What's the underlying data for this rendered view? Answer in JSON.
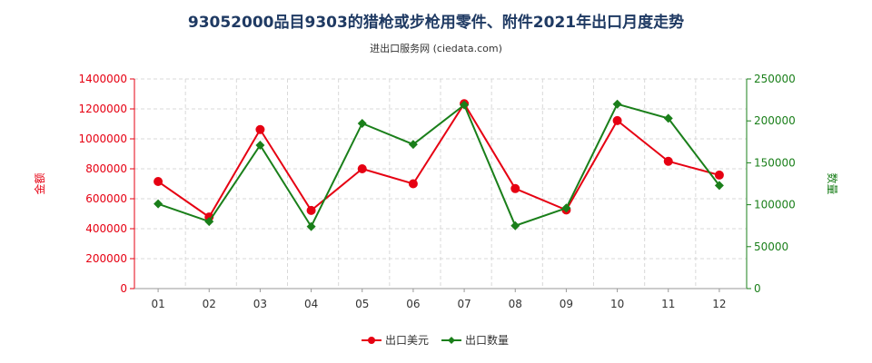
{
  "chart_data": {
    "type": "line",
    "title": "93052000品目9303的猎枪或步枪用零件、附件2021年出口月度走势",
    "subtitle": "进出口服务网 (ciedata.com)",
    "categories": [
      "01",
      "02",
      "03",
      "04",
      "05",
      "06",
      "07",
      "08",
      "09",
      "10",
      "11",
      "12"
    ],
    "y_left": {
      "label": "金额",
      "ylim": [
        0,
        1400000
      ],
      "ticks": [
        0,
        200000,
        400000,
        600000,
        800000,
        1000000,
        1200000,
        1400000
      ],
      "color": "#e60012"
    },
    "y_right": {
      "label": "数量",
      "ylim": [
        0,
        250000
      ],
      "ticks": [
        0,
        50000,
        100000,
        150000,
        200000,
        250000
      ],
      "color": "#1a7f1a"
    },
    "series": [
      {
        "name": "出口美元",
        "axis": "left",
        "color": "#e60012",
        "marker": "circle",
        "values": [
          715000,
          478000,
          1062000,
          522000,
          800000,
          700000,
          1235000,
          668000,
          525000,
          1122000,
          850000,
          758000
        ]
      },
      {
        "name": "出口数量",
        "axis": "right",
        "color": "#1a7f1a",
        "marker": "diamond",
        "values": [
          101000,
          80000,
          171000,
          74000,
          197000,
          172000,
          219000,
          75000,
          96000,
          220000,
          203000,
          123000
        ]
      }
    ],
    "grid": true,
    "legend_position": "bottom-center"
  }
}
